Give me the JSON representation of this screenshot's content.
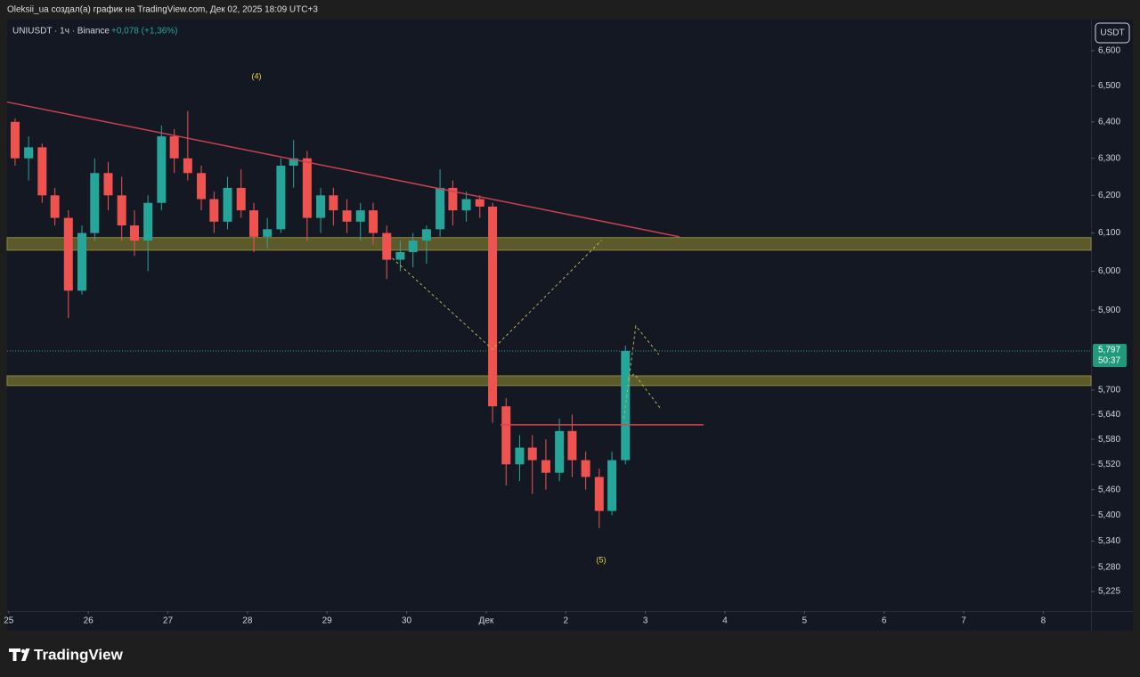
{
  "header": {
    "text": "Oleksii_ua создал(а) график на TradingView.com, Дек 02, 2025 18:09 UTC+3"
  },
  "currency": "USDT",
  "logo": "TradingView",
  "chart_data": {
    "type": "candlestick",
    "title": "UNIUSDT · 1ч · Binance",
    "subtitle": "+0,078 (+1,36%)",
    "up_color": "#26a69a",
    "down_color": "#ef5350",
    "log_scale": true,
    "grid": false,
    "x": [
      0.08,
      0.25,
      0.42,
      0.58,
      0.75,
      0.92,
      1.08,
      1.25,
      1.42,
      1.58,
      1.75,
      1.92,
      2.08,
      2.25,
      2.42,
      2.58,
      2.75,
      2.92,
      3.08,
      3.25,
      3.42,
      3.58,
      3.75,
      3.92,
      4.08,
      4.25,
      4.42,
      4.58,
      4.75,
      4.92,
      5.08,
      5.25,
      5.42,
      5.58,
      5.75,
      5.92,
      6.08,
      6.25,
      6.42,
      6.58,
      6.75,
      6.92,
      7.08,
      7.25,
      7.42,
      7.58,
      7.75
    ],
    "open": [
      6.4,
      6.3,
      6.33,
      6.2,
      6.14,
      5.95,
      6.1,
      6.26,
      6.2,
      6.12,
      6.08,
      6.18,
      6.36,
      6.3,
      6.26,
      6.19,
      6.13,
      6.22,
      6.16,
      6.09,
      6.11,
      6.28,
      6.3,
      6.14,
      6.2,
      6.16,
      6.13,
      6.16,
      6.1,
      6.03,
      6.05,
      6.08,
      6.11,
      6.22,
      6.16,
      6.19,
      6.17,
      5.66,
      5.52,
      5.56,
      5.53,
      5.5,
      5.6,
      5.53,
      5.49,
      5.41,
      5.53
    ],
    "high": [
      6.41,
      6.36,
      6.34,
      6.22,
      6.16,
      6.12,
      6.3,
      6.29,
      6.25,
      6.16,
      6.2,
      6.39,
      6.38,
      6.43,
      6.28,
      6.21,
      6.25,
      6.27,
      6.18,
      6.14,
      6.3,
      6.35,
      6.32,
      6.22,
      6.22,
      6.19,
      6.18,
      6.18,
      6.12,
      6.08,
      6.1,
      6.12,
      6.27,
      6.24,
      6.21,
      6.2,
      6.18,
      5.68,
      5.59,
      5.59,
      5.58,
      5.63,
      5.64,
      5.55,
      5.51,
      5.55,
      5.81
    ],
    "low": [
      6.28,
      6.24,
      6.18,
      6.12,
      5.88,
      5.94,
      6.08,
      6.16,
      6.08,
      6.04,
      6.0,
      6.16,
      6.26,
      6.24,
      6.16,
      6.1,
      6.11,
      6.14,
      6.05,
      6.06,
      6.1,
      6.22,
      6.08,
      6.1,
      6.12,
      6.1,
      6.08,
      6.07,
      5.98,
      6.0,
      6.01,
      6.02,
      6.09,
      6.12,
      6.13,
      6.14,
      5.62,
      5.47,
      5.48,
      5.45,
      5.46,
      5.48,
      5.49,
      5.46,
      5.37,
      5.4,
      5.52
    ],
    "close": [
      6.3,
      6.33,
      6.2,
      6.14,
      5.95,
      6.1,
      6.26,
      6.2,
      6.12,
      6.08,
      6.18,
      6.36,
      6.3,
      6.26,
      6.19,
      6.13,
      6.22,
      6.16,
      6.09,
      6.11,
      6.28,
      6.3,
      6.14,
      6.2,
      6.16,
      6.13,
      6.16,
      6.1,
      6.03,
      6.05,
      6.08,
      6.11,
      6.22,
      6.16,
      6.19,
      6.17,
      5.66,
      5.52,
      5.56,
      5.53,
      5.5,
      5.6,
      5.53,
      5.49,
      5.41,
      5.53,
      5.797
    ],
    "xlim": [
      -0.02,
      13.6
    ],
    "xticks": [
      {
        "value": 0,
        "label": "25"
      },
      {
        "value": 1,
        "label": "26"
      },
      {
        "value": 2,
        "label": "27"
      },
      {
        "value": 3,
        "label": "28"
      },
      {
        "value": 4,
        "label": "29"
      },
      {
        "value": 5,
        "label": "30"
      },
      {
        "value": 6,
        "label": "Дек"
      },
      {
        "value": 7,
        "label": "2"
      },
      {
        "value": 8,
        "label": "3"
      },
      {
        "value": 9,
        "label": "4"
      },
      {
        "value": 10,
        "label": "5"
      },
      {
        "value": 11,
        "label": "6"
      },
      {
        "value": 12,
        "label": "7"
      },
      {
        "value": 13,
        "label": "8"
      }
    ],
    "ylim": [
      5.181,
      6.689
    ],
    "yticks": [
      {
        "value": 6.6,
        "label": "6,600"
      },
      {
        "value": 6.5,
        "label": "6,500"
      },
      {
        "value": 6.4,
        "label": "6,400"
      },
      {
        "value": 6.3,
        "label": "6,300"
      },
      {
        "value": 6.2,
        "label": "6,200"
      },
      {
        "value": 6.1,
        "label": "6,100"
      },
      {
        "value": 6.0,
        "label": "6,000"
      },
      {
        "value": 5.9,
        "label": "5,900"
      },
      {
        "value": 5.7,
        "label": "5,700"
      },
      {
        "value": 5.64,
        "label": "5,640"
      },
      {
        "value": 5.58,
        "label": "5,580"
      },
      {
        "value": 5.52,
        "label": "5,520"
      },
      {
        "value": 5.46,
        "label": "5,460"
      },
      {
        "value": 5.4,
        "label": "5,400"
      },
      {
        "value": 5.34,
        "label": "5,340"
      },
      {
        "value": 5.28,
        "label": "5,280"
      },
      {
        "value": 5.225,
        "label": "5,225"
      }
    ],
    "last_price": {
      "value": 5.797,
      "label": "5,797"
    },
    "countdown": "50:37",
    "trendline": {
      "color": "#c8414f",
      "x": [
        -0.02,
        8.43
      ],
      "y": [
        6.455,
        6.09
      ]
    },
    "zones": [
      {
        "color": "#5c5a2b",
        "y": [
          6.088,
          6.055
        ]
      },
      {
        "color": "#5c5a2b",
        "y": [
          5.735,
          5.711
        ]
      }
    ],
    "hline": {
      "color": "#d9434c",
      "x": [
        6.18,
        8.73
      ],
      "y": 5.615
    },
    "projections": [
      {
        "color": "#b8b34a",
        "x": [
          4.82,
          6.08,
          7.45
        ],
        "y": [
          6.034,
          5.801,
          6.081
        ]
      },
      {
        "color": "#b8b34a",
        "x": [
          7.73,
          7.88,
          8.17
        ],
        "y": [
          5.63,
          5.86,
          5.788
        ]
      },
      {
        "color": "#b8b34a",
        "x": [
          7.78,
          7.86,
          8.2
        ],
        "y": [
          5.727,
          5.74,
          5.652
        ]
      }
    ],
    "annotations": [
      "(4)",
      "(5)"
    ]
  }
}
